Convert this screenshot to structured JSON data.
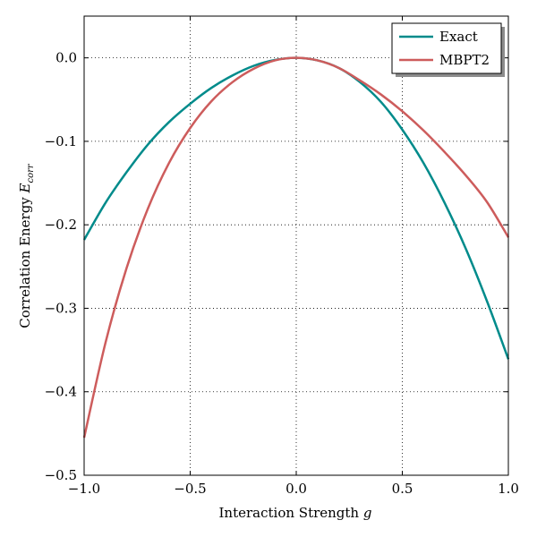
{
  "chart_data": {
    "type": "line",
    "title": "",
    "xlabel": "Interaction Strength",
    "xlabel_var": "g",
    "ylabel": "Correlation Energy",
    "ylabel_var": "E",
    "ylabel_sub": "corr",
    "xlim": [
      -1.0,
      1.0
    ],
    "ylim": [
      -0.5,
      0.05
    ],
    "xticks": [
      -1.0,
      -0.5,
      0.0,
      0.5,
      1.0
    ],
    "xtick_labels": [
      "−1.0",
      "−0.5",
      "0.0",
      "0.5",
      "1.0"
    ],
    "yticks": [
      0.0,
      -0.1,
      -0.2,
      -0.3,
      -0.4,
      -0.5
    ],
    "ytick_labels": [
      "0.0",
      "−0.1",
      "−0.2",
      "−0.3",
      "−0.4",
      "−0.5"
    ],
    "grid": true,
    "legend_position": "top-right",
    "x": [
      -1.0,
      -0.9,
      -0.8,
      -0.7,
      -0.6,
      -0.5,
      -0.4,
      -0.3,
      -0.2,
      -0.1,
      0.0,
      0.1,
      0.2,
      0.3,
      0.4,
      0.5,
      0.6,
      0.7,
      0.8,
      0.9,
      1.0
    ],
    "series": [
      {
        "name": "Exact",
        "color": "#008b8b",
        "values": [
          -0.218,
          -0.174,
          -0.137,
          -0.104,
          -0.077,
          -0.055,
          -0.036,
          -0.021,
          -0.0095,
          -0.0025,
          0.0,
          -0.003,
          -0.012,
          -0.029,
          -0.053,
          -0.086,
          -0.126,
          -0.174,
          -0.229,
          -0.292,
          -0.361
        ]
      },
      {
        "name": "MBPT2",
        "color": "#cd5c5c",
        "values": [
          -0.455,
          -0.342,
          -0.252,
          -0.181,
          -0.126,
          -0.084,
          -0.052,
          -0.029,
          -0.013,
          -0.003,
          0.0,
          -0.003,
          -0.012,
          -0.027,
          -0.044,
          -0.064,
          -0.087,
          -0.113,
          -0.141,
          -0.173,
          -0.215
        ]
      }
    ]
  }
}
